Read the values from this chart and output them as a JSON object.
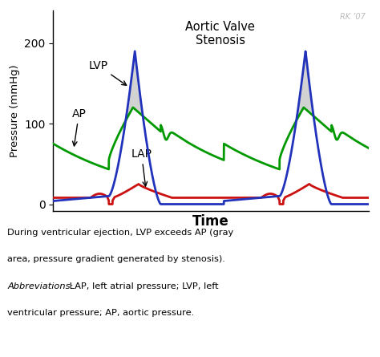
{
  "title": "Aortic Valve\nStenosis",
  "xlabel": "Time",
  "ylabel": "Pressure (mmHg)",
  "watermark": "RK ’07",
  "ylim": [
    -8,
    240
  ],
  "yticks": [
    0,
    100,
    200
  ],
  "lvp_color": "#2233BB",
  "ap_color": "#009900",
  "lap_color": "#CC1111",
  "fill_color": "#BBBBBB",
  "fill_alpha": 0.65,
  "background_color": "#FFFFFF",
  "caption_line1": "During ventricular ejection, LVP exceeds AP (gray",
  "caption_line2": "area, pressure gradient generated by stenosis).",
  "caption_line3": "Abbreviations: LAP, left atrial pressure; LVP, left",
  "caption_line4": "ventricular pressure; AP, aortic pressure."
}
